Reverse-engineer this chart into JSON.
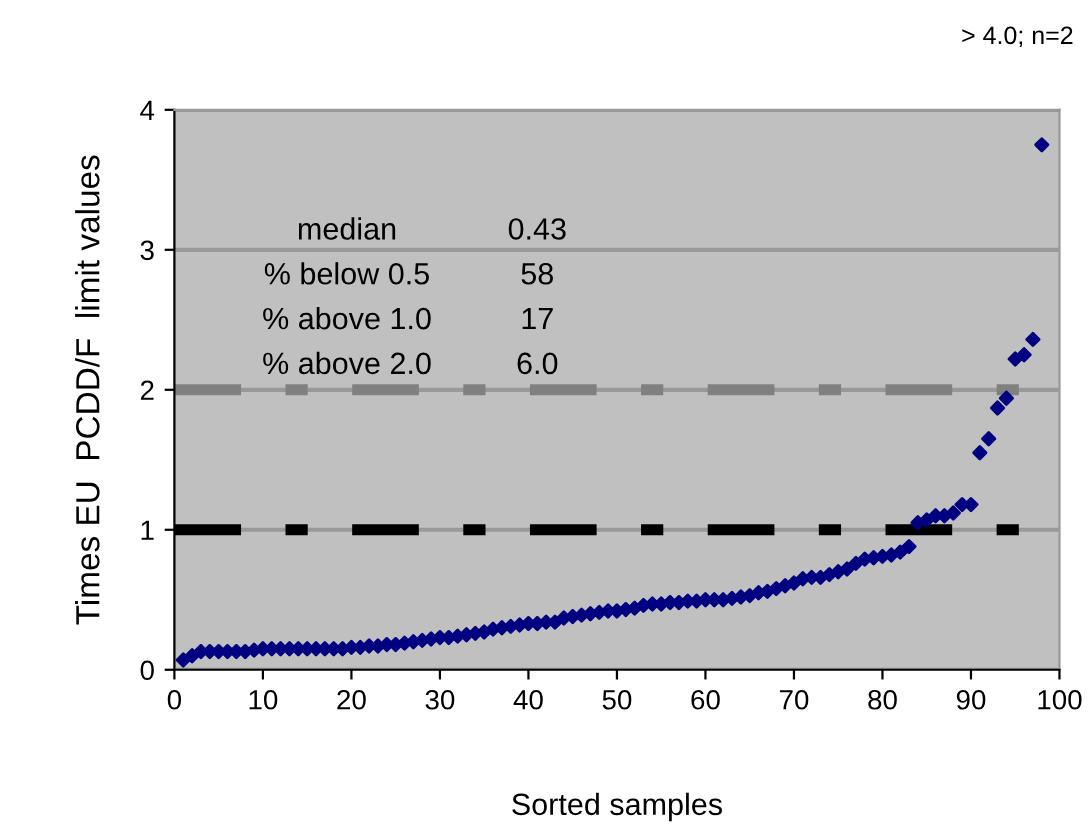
{
  "chart_data": {
    "type": "scatter",
    "xlabel": "Sorted samples",
    "ylabel": "Times EU  PCDD/F  limit values",
    "x": [
      1,
      2,
      3,
      4,
      5,
      6,
      7,
      8,
      9,
      10,
      11,
      12,
      13,
      14,
      15,
      16,
      17,
      18,
      19,
      20,
      21,
      22,
      23,
      24,
      25,
      26,
      27,
      28,
      29,
      30,
      31,
      32,
      33,
      34,
      35,
      36,
      37,
      38,
      39,
      40,
      41,
      42,
      43,
      44,
      45,
      46,
      47,
      48,
      49,
      50,
      51,
      52,
      53,
      54,
      55,
      56,
      57,
      58,
      59,
      60,
      61,
      62,
      63,
      64,
      65,
      66,
      67,
      68,
      69,
      70,
      71,
      72,
      73,
      74,
      75,
      76,
      77,
      78,
      79,
      80,
      81,
      82,
      83,
      84,
      85,
      86,
      87,
      88,
      89,
      90,
      91,
      92,
      93,
      94,
      95,
      96,
      97,
      98
    ],
    "series": [
      {
        "color": "#000080",
        "values": [
          0.07,
          0.1,
          0.13,
          0.13,
          0.13,
          0.13,
          0.13,
          0.13,
          0.14,
          0.15,
          0.15,
          0.15,
          0.15,
          0.15,
          0.15,
          0.15,
          0.15,
          0.15,
          0.15,
          0.16,
          0.16,
          0.17,
          0.17,
          0.18,
          0.18,
          0.19,
          0.2,
          0.21,
          0.22,
          0.23,
          0.23,
          0.24,
          0.25,
          0.26,
          0.27,
          0.29,
          0.3,
          0.31,
          0.32,
          0.33,
          0.33,
          0.34,
          0.34,
          0.37,
          0.38,
          0.39,
          0.4,
          0.41,
          0.42,
          0.42,
          0.43,
          0.44,
          0.46,
          0.47,
          0.47,
          0.48,
          0.48,
          0.49,
          0.49,
          0.5,
          0.5,
          0.5,
          0.51,
          0.52,
          0.53,
          0.55,
          0.56,
          0.58,
          0.6,
          0.62,
          0.65,
          0.66,
          0.66,
          0.68,
          0.7,
          0.72,
          0.76,
          0.79,
          0.8,
          0.81,
          0.82,
          0.84,
          0.88,
          1.05,
          1.07,
          1.1,
          1.1,
          1.12,
          1.18,
          1.18,
          1.55,
          1.65,
          1.87,
          1.94,
          2.22,
          2.25,
          2.36,
          3.75
        ]
      }
    ],
    "xlim": [
      0,
      100
    ],
    "xticks": [
      0,
      10,
      20,
      30,
      40,
      50,
      60,
      70,
      80,
      90,
      100
    ],
    "ylim": [
      0,
      4
    ],
    "yticks": [
      0,
      1,
      2,
      3,
      4
    ],
    "grid": "y",
    "marker": "diamond",
    "ref_lines": [
      {
        "axis": "y",
        "value": 1,
        "color": "#000000",
        "line_style": "dashdot"
      },
      {
        "axis": "y",
        "value": 2,
        "color": "#808080",
        "line_style": "dashdot"
      }
    ],
    "annotations": [
      "> 4.0; n=2",
      "median",
      "0.43",
      "% below 0.5",
      "58",
      "% above 1.0",
      "17",
      "% above 2.0",
      "6.0"
    ]
  }
}
